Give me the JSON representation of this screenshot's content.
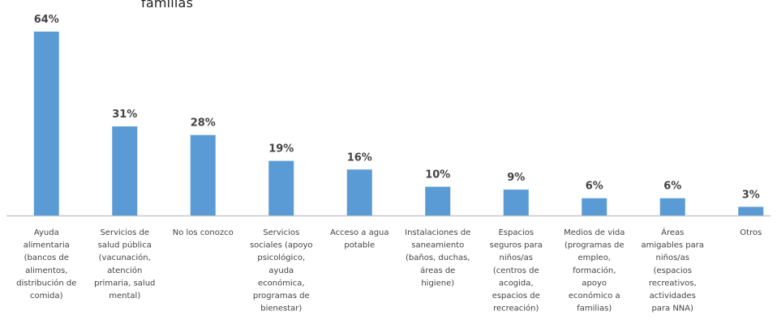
{
  "chart_data": {
    "type": "bar",
    "title_fragment": "familias",
    "categories": [
      [
        "Ayuda",
        "alimentaria",
        "(bancos de",
        "alimentos,",
        "distribución de",
        "comida)"
      ],
      [
        "Servicios de",
        "salud pública",
        "(vacunación,",
        "atención",
        "primaria, salud",
        "mental)"
      ],
      [
        "No los conozco"
      ],
      [
        "Servicios",
        "sociales (apoyo",
        "psicológico,",
        "ayuda",
        "económica,",
        "programas de",
        "bienestar)"
      ],
      [
        "Acceso a agua",
        "potable"
      ],
      [
        "Instalaciones de",
        "saneamiento",
        "(baños, duchas,",
        "áreas de",
        "higiene)"
      ],
      [
        "Espacios",
        "seguros para",
        "niños/as",
        "(centros de",
        "acogida,",
        "espacios de",
        "recreación)"
      ],
      [
        "Medios de vida",
        "(programas de",
        "empleo,",
        "formación,",
        "apoyo",
        "económico a",
        "familias)"
      ],
      [
        "Áreas",
        "amigables para",
        "niños/as",
        "(espacios",
        "recreativos,",
        "actividades",
        "para NNA)"
      ],
      [
        "Otros"
      ]
    ],
    "values": [
      64,
      31,
      28,
      19,
      16,
      10,
      9,
      6,
      6,
      3
    ],
    "value_labels": [
      "64%",
      "31%",
      "28%",
      "19%",
      "16%",
      "10%",
      "9%",
      "6%",
      "6%",
      "3%"
    ],
    "ylim": [
      0,
      64
    ],
    "bar_color": "#5b9bd5",
    "axis_color": "#c8c8c8",
    "grid": false
  }
}
